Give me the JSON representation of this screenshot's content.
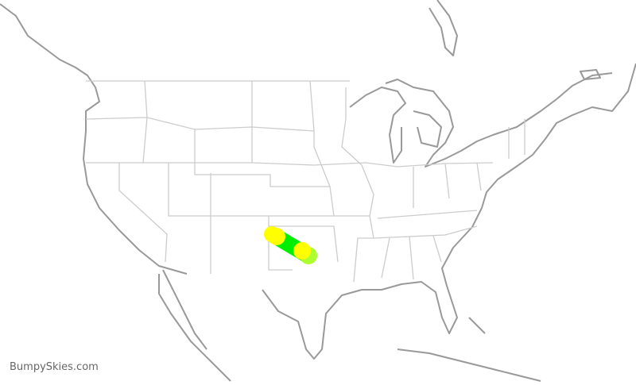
{
  "credit": "BumpySkies.com",
  "colors": {
    "coast": "#999999",
    "state_border": "#cccccc",
    "route_line": "#00ee00",
    "marker_start": "#ffff00",
    "marker_end": "#adff2f"
  },
  "route": {
    "line_color": "#00ee00",
    "markers": [
      "yellow",
      "yellow",
      "yellow",
      "greenyellow"
    ]
  }
}
